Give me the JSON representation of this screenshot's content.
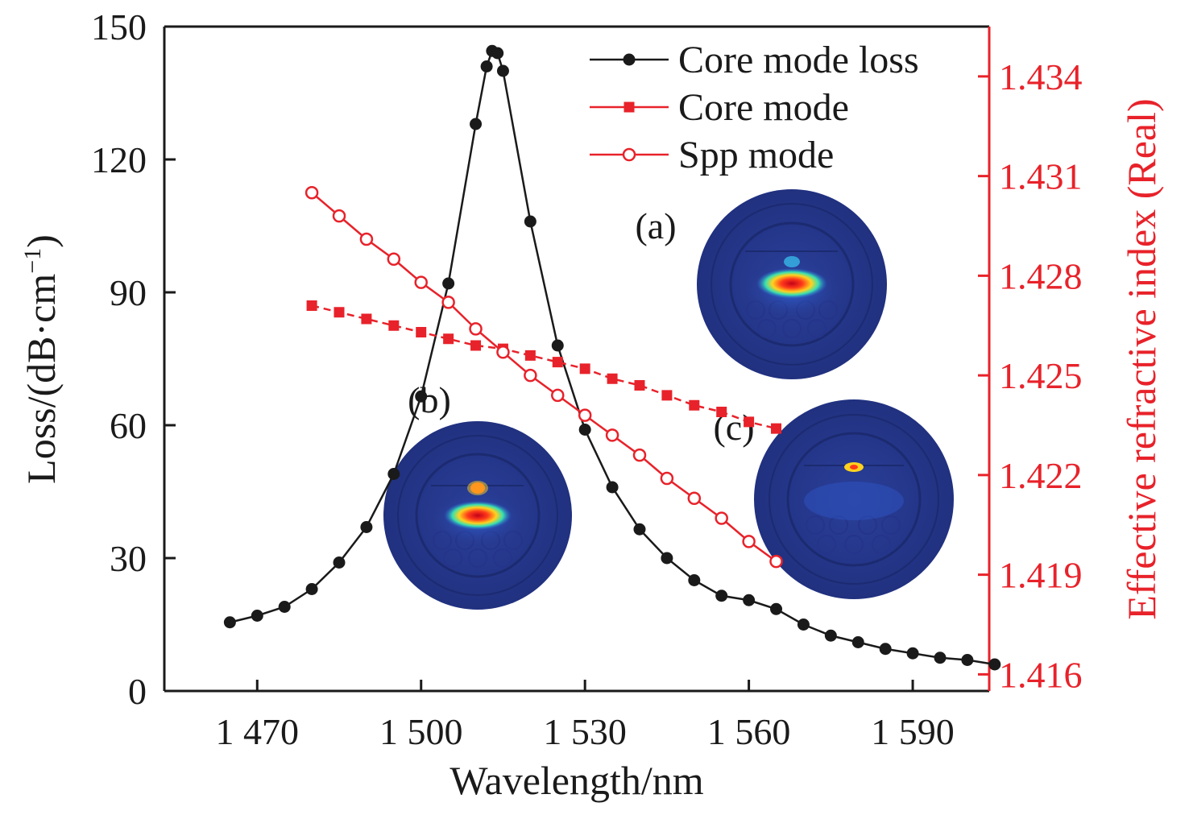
{
  "chart_data": {
    "type": "line",
    "xlabel": "Wavelength/nm",
    "ylabel_left_main": "Loss/(dB·cm",
    "ylabel_left_sup": "−1",
    "ylabel_left_close": ")",
    "ylabel_right": "Effective refractive index (Real)",
    "xlim": [
      1453,
      1604
    ],
    "ylim_left": [
      0,
      150
    ],
    "ylim_right": [
      1.4155,
      1.4355
    ],
    "x_ticks": [
      1470,
      1500,
      1530,
      1560,
      1590
    ],
    "x_tick_labels": [
      "1 470",
      "1 500",
      "1 530",
      "1 560",
      "1 590"
    ],
    "y_left_ticks": [
      0,
      30,
      60,
      90,
      120,
      150
    ],
    "y_left_tick_labels": [
      "0",
      "30",
      "60",
      "90",
      "120",
      "150"
    ],
    "y_right_ticks": [
      1.416,
      1.419,
      1.422,
      1.425,
      1.428,
      1.431,
      1.434
    ],
    "y_right_tick_labels": [
      "1.416",
      "1.419",
      "1.422",
      "1.425",
      "1.428",
      "1.431",
      "1.434"
    ],
    "legend_position": "top-right",
    "series": [
      {
        "name": "Core mode loss",
        "axis": "left",
        "color": "#1a1a1a",
        "marker": "filled-circle",
        "line": "solid",
        "x": [
          1465,
          1470,
          1475,
          1480,
          1485,
          1490,
          1495,
          1500,
          1505,
          1510,
          1512,
          1513,
          1514,
          1515,
          1520,
          1525,
          1530,
          1535,
          1540,
          1545,
          1550,
          1555,
          1560,
          1565,
          1570,
          1575,
          1580,
          1585,
          1590,
          1595,
          1600,
          1605
        ],
        "values": [
          15.5,
          17,
          19,
          23,
          29,
          37,
          49,
          66.5,
          92,
          128,
          141,
          144.5,
          144,
          140,
          106,
          78,
          59,
          46,
          36.5,
          30,
          25,
          21.5,
          20.5,
          18.5,
          15,
          12.5,
          11,
          9.5,
          8.5,
          7.5,
          7,
          6
        ]
      },
      {
        "name": "Core mode",
        "axis": "right",
        "color": "#e8222a",
        "marker": "filled-square",
        "line": "dashed",
        "x": [
          1480,
          1485,
          1490,
          1495,
          1500,
          1505,
          1510,
          1515,
          1520,
          1525,
          1530,
          1535,
          1540,
          1545,
          1550,
          1555,
          1560,
          1565
        ],
        "values": [
          1.4271,
          1.4269,
          1.4267,
          1.4265,
          1.4263,
          1.4261,
          1.4259,
          1.4258,
          1.4256,
          1.4254,
          1.4252,
          1.4249,
          1.4247,
          1.4244,
          1.4241,
          1.4239,
          1.4236,
          1.4234
        ]
      },
      {
        "name": "Spp mode",
        "axis": "right",
        "color": "#e8222a",
        "marker": "open-circle",
        "line": "solid",
        "x": [
          1480,
          1485,
          1490,
          1495,
          1500,
          1505,
          1510,
          1515,
          1520,
          1525,
          1530,
          1535,
          1540,
          1545,
          1550,
          1555,
          1560,
          1565
        ],
        "values": [
          1.4305,
          1.4298,
          1.4291,
          1.4285,
          1.4278,
          1.4272,
          1.4264,
          1.4257,
          1.425,
          1.4244,
          1.4238,
          1.4232,
          1.4226,
          1.4219,
          1.4213,
          1.4207,
          1.42,
          1.4194
        ]
      }
    ],
    "insets": [
      {
        "label": "(a)"
      },
      {
        "label": "(b)"
      },
      {
        "label": "(c)"
      }
    ]
  }
}
